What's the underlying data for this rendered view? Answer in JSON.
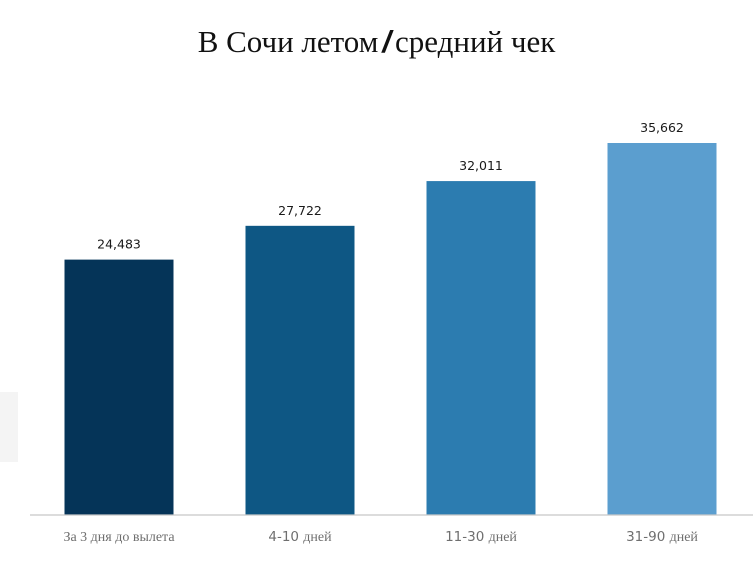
{
  "title": {
    "part1": "В Сочи летом",
    "separator": "/",
    "part2": "средний чек"
  },
  "chart_data": {
    "type": "bar",
    "title": "В Сочи летом / средний чек",
    "categories": [
      "За 3 дня до вылета",
      "4-10 дней",
      "11-30 дней",
      "31-90 дней"
    ],
    "values": [
      24483,
      27722,
      32011,
      35662
    ],
    "value_labels": [
      "24,483",
      "27,722",
      "32,011",
      "35,662"
    ],
    "colors": [
      "#053458",
      "#0e5784",
      "#2c7cb0",
      "#5b9ecf"
    ],
    "ylim": [
      0,
      40000
    ],
    "xlabel": "",
    "ylabel": "",
    "grid": false,
    "legend": "none"
  }
}
